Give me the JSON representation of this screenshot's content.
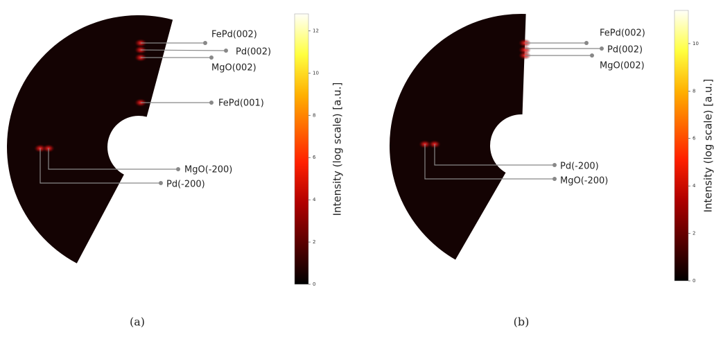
{
  "figure": {
    "panels": [
      {
        "caption": "(a)",
        "annotations": [
          {
            "label": "FePd(002)"
          },
          {
            "label": "Pd(002)"
          },
          {
            "label": "MgO(002)"
          },
          {
            "label": "FePd(001)"
          },
          {
            "label": "MgO(-200)"
          },
          {
            "label": "Pd(-200)"
          }
        ],
        "colorbar": {
          "label": "Intensity (log scale) [a.u.]",
          "range": [
            0,
            12.8
          ],
          "ticks": [
            0,
            2,
            4,
            6,
            8,
            10,
            12
          ]
        }
      },
      {
        "caption": "(b)",
        "annotations": [
          {
            "label": "FePd(002)"
          },
          {
            "label": "Pd(002)"
          },
          {
            "label": "MgO(002)"
          },
          {
            "label": "Pd(-200)"
          },
          {
            "label": "MgO(-200)"
          }
        ],
        "colorbar": {
          "label": "Intensity (log scale) [a.u.]",
          "range": [
            0,
            11.4
          ],
          "ticks": [
            0,
            2,
            4,
            6,
            8,
            10
          ]
        }
      }
    ]
  }
}
